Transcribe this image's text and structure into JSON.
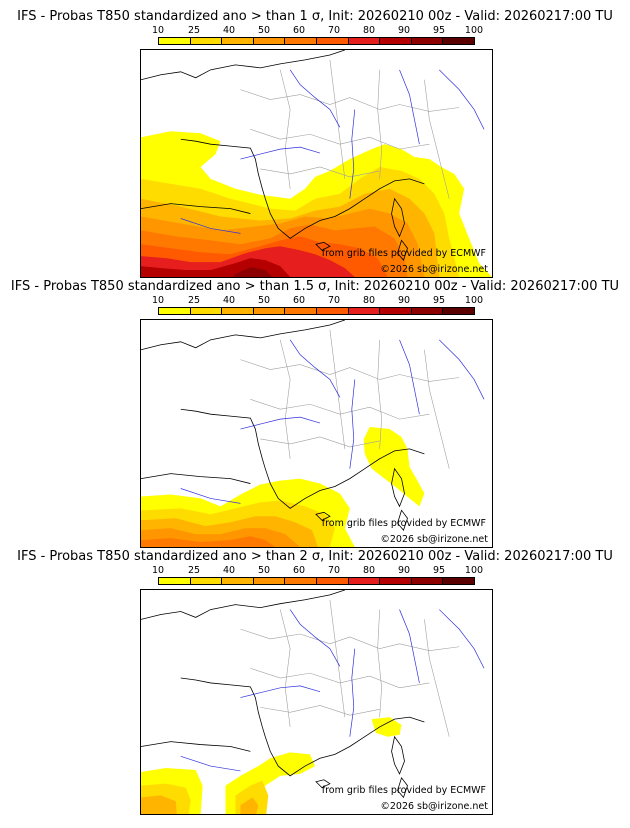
{
  "colors": {
    "scale": [
      "#ffff00",
      "#ffdc00",
      "#ffb400",
      "#ff9600",
      "#ff7800",
      "#ff5a00",
      "#e61e1e",
      "#b40000",
      "#8c0000",
      "#5a0000"
    ],
    "coast": "#000000",
    "borders": "#a0a0a0",
    "rivers": "#3030e0"
  },
  "legend": {
    "ticks": [
      "10",
      "25",
      "40",
      "50",
      "60",
      "70",
      "80",
      "90",
      "95",
      "100"
    ]
  },
  "credits": {
    "grib": "from grib files provided by ECMWF",
    "copyright": "©2026 sb@irizone.net"
  },
  "panels": [
    {
      "title": "IFS - Probas T850  standardized ano > than 1 σ, Init: 20260210 00z - Valid: 20260217:00 TU",
      "threshold_sigma": 1,
      "coverage": "large"
    },
    {
      "title": "IFS - Probas T850  standardized ano > than 1.5 σ, Init: 20260210 00z - Valid: 20260217:00 TU",
      "threshold_sigma": 1.5,
      "coverage": "medium"
    },
    {
      "title": "IFS - Probas T850  standardized ano > than 2 σ, Init: 20260210 00z - Valid: 20260217:00 TU",
      "threshold_sigma": 2,
      "coverage": "small"
    }
  ]
}
